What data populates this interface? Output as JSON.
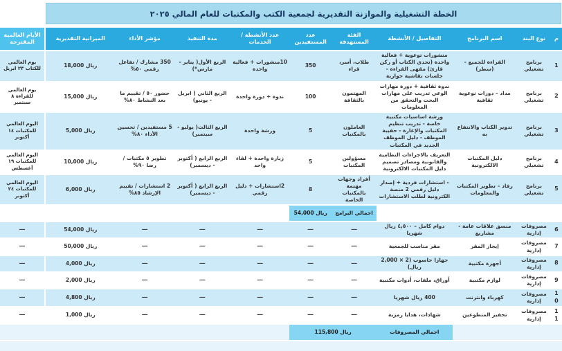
{
  "title": "الخطة التشغيلية والموازنة التقديرية لجمعية الكتب والمكتبات للعام المالي ٢٠٢٥",
  "colors": {
    "header_blue": "#2BAAE0",
    "world_days_header_blue": "#4FC2ED",
    "row_light_blue": "#CDEAF8",
    "total_highlight_blue": "#86D6F3",
    "title_bar_blue": "#A6DAEF"
  },
  "table": {
    "columns": [
      {
        "key": "num",
        "label": "م"
      },
      {
        "key": "item_type",
        "label": "نوع البند"
      },
      {
        "key": "program_name",
        "label": "اسم البرنامج"
      },
      {
        "key": "details",
        "label": "التفاصيل / الأنشطة"
      },
      {
        "key": "target_group",
        "label": "الفئة المستهدفة"
      },
      {
        "key": "beneficiaries",
        "label": "عدد المستفيدين"
      },
      {
        "key": "activities",
        "label": "عدد الأنشطة / الخدمات"
      },
      {
        "key": "duration",
        "label": "مدة التنفيذ"
      },
      {
        "key": "indicator",
        "label": "مؤشر الأداء"
      },
      {
        "key": "budget",
        "label": "الميزانية التقديرية"
      },
      {
        "key": "world_days",
        "label": "الأيام العالمية المقترحة"
      }
    ],
    "rows": [
      {
        "type": "data",
        "cells": [
          "1",
          "برنامج تشغيلي",
          "القراءة للجميع - (سطر)",
          "منشورات توعوية + فعالية واحدة (تحدي الكتاب أو ركن قارئ) مقهى القراءة - جلسات نقاشية حوارية",
          "طلاب، أسر، قراء",
          "350",
          "10منشورات + فعالية واحدة",
          "الربع الأول( يناير - مارس*)",
          "350 مشارك / تفاعل رقمي ٥٠%",
          "18,000 ريال",
          "يوم العالمي للكتاب ٢٣ ابريل"
        ]
      },
      {
        "type": "data",
        "cells": [
          "2",
          "برنامج تشغيلي",
          "مداد – دورات توعوية ثقافية",
          "ندوة ثقافية + دورة مهارات الوعي تدريب على مهارات البحث والتحقق من المعلومات",
          "المهتمون بالثقافة",
          "100",
          "ندوة + دورة واحدة",
          "الربع الثاني ( ابريل - يونيو)",
          "حضور ٥٠ / تقييم ما بعد النشاط ٨٠%",
          "15,000 ريال",
          "يوم العالمي للقراءة ٨ سبتمبر"
        ]
      },
      {
        "type": "data",
        "cells": [
          "3",
          "برنامج تشغيلي",
          "تدوير الكتاب والانتفاع به",
          "ورشة اساسيات مكتبية خاصة - تدريب تنظيم المكتبات والإعارة - حقيبة الموظف - دليل الموظف الجديد في المكتبات",
          "العاملون بالمكتبات",
          "5",
          "ورشة واحدة",
          "الربع الثالث( يوليو - سبتمبر)",
          "5 مستفيدين / تحسين الأداء ٨٠%",
          "5,000 ريال",
          "اليوم العالمي للمكتبات ١٤ أكتوبر"
        ]
      },
      {
        "type": "data",
        "cells": [
          "4",
          "برنامج تشغيلي",
          "دليل المكتبات الالكترونية",
          "التعريف بالاجراءات النظامية والقانونية ومصادر تصميم دليل المكتبات الالكترونية",
          "مسؤولين المكتبات",
          "5",
          "زيارة واحدة + لقاء واحد",
          "الربع الرابع ( أكتوبر - ديسمبر)",
          "تطوير ٥ مكتبات / رضا ٩٠%",
          "10,000 ريال",
          "اليوم العالمي للمكتبات ١٩ أغسطس"
        ]
      },
      {
        "type": "data",
        "cells": [
          "5",
          "برنامج تشغيلي",
          "رفاد – تطوير المكتبات والمعلومات",
          "- استشارات فردية + إصدار دليل رقمي 2 منصة الكترونية لطلب الاستشارات",
          "أفراد وجهات مهتمة بالمكتبات الخاصة",
          "8",
          "2استشارات + دليل رقمي",
          "الربع الرابع ( أكتوبر - ديسمبر)",
          "2 استشارات / تقييم الإرشاد ٨٥%",
          "6,000 ريال",
          "اليوم العالمي للمكتبات ٢٤ أكتوبر"
        ]
      },
      {
        "type": "subtotal",
        "label": "اجمالي البرامج",
        "value": "54,000 ريال"
      },
      {
        "type": "data",
        "cells": [
          "6",
          "مصروفات إدارية",
          "منسق علاقات عامة - مشاريع",
          "دوام كامل – ٤,٥٠٠ ريال شهريا",
          "—",
          "—",
          "—",
          "—",
          "—",
          "54,000 ريال",
          "—"
        ]
      },
      {
        "type": "data",
        "cells": [
          "7",
          "مصروفات إدارية",
          "إيجار المقر",
          "مقر مناسب للجمعية",
          "—",
          "—",
          "—",
          "—",
          "—",
          "50,000 ريال",
          "—"
        ]
      },
      {
        "type": "data",
        "cells": [
          "8",
          "مصروفات إدارية",
          "أجهزة مكتبية",
          "جهازا حاسوب (2 × 2,000 ريال)",
          "—",
          "—",
          "—",
          "—",
          "—",
          "4,000 ريال",
          "—"
        ]
      },
      {
        "type": "data",
        "cells": [
          "9",
          "مصروفات إدارية",
          "لوازم مكتبية",
          "أوراق، ملفات، أدوات مكتبية",
          "—",
          "—",
          "—",
          "—",
          "—",
          "2,000 ريال",
          "—"
        ]
      },
      {
        "type": "data",
        "cells": [
          "10",
          "مصروفات إدارية",
          "كهرباء وانترنت",
          "400 ريال شهريا",
          "—",
          "—",
          "—",
          "—",
          "—",
          "4,800 ريال",
          "—"
        ]
      },
      {
        "type": "data",
        "cells": [
          "11",
          "مصروفات إدارية",
          "تحفيز المتطوعين",
          "شهادات، هدايا رمزية",
          "—",
          "—",
          "—",
          "—",
          "—",
          "1,000 ريال",
          "—"
        ]
      },
      {
        "type": "total",
        "label": "اجمالي المصروفات",
        "value": "115,800 ريال"
      },
      {
        "type": "spacer"
      }
    ]
  }
}
